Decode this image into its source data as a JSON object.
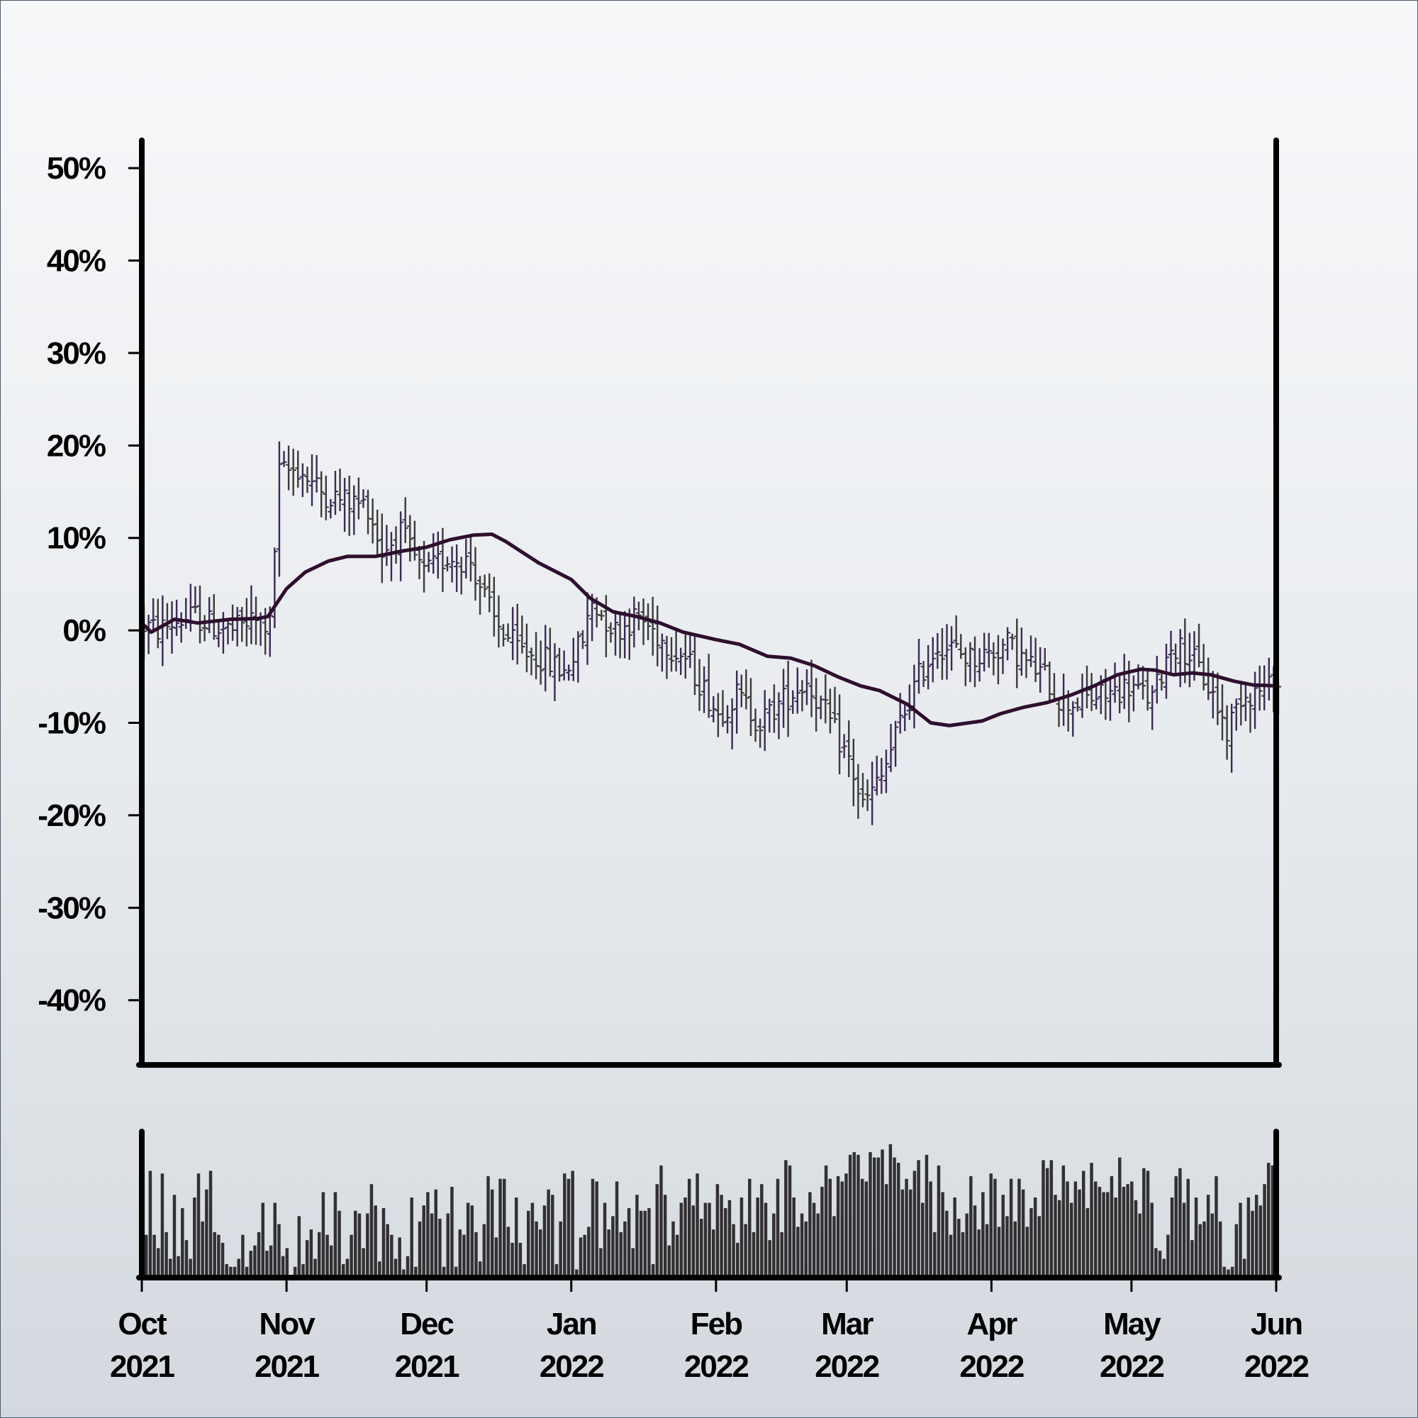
{
  "chart_data": {
    "type": "ohlc",
    "title": "",
    "xlabel": "",
    "ylabel": "",
    "y_unit": "%",
    "ylim": [
      -47,
      53
    ],
    "y_ticks": [
      50,
      40,
      30,
      20,
      10,
      0,
      -10,
      -20,
      -30,
      -40
    ],
    "y_tick_labels": [
      "50%",
      "40%",
      "30%",
      "20%",
      "10%",
      "0%",
      "-10%",
      "-20%",
      "-30%",
      "-40%"
    ],
    "x_range": [
      "2021-10-01",
      "2022-06-01"
    ],
    "x_ticks": [
      {
        "date": "2021-10-01",
        "month": "Oct",
        "year": "2021"
      },
      {
        "date": "2021-11-01",
        "month": "Nov",
        "year": "2021"
      },
      {
        "date": "2021-12-01",
        "month": "Dec",
        "year": "2021"
      },
      {
        "date": "2022-01-01",
        "month": "Jan",
        "year": "2022"
      },
      {
        "date": "2022-02-01",
        "month": "Feb",
        "year": "2022"
      },
      {
        "date": "2022-03-01",
        "month": "Mar",
        "year": "2022"
      },
      {
        "date": "2022-04-01",
        "month": "Apr",
        "year": "2022"
      },
      {
        "date": "2022-05-01",
        "month": "May",
        "year": "2022"
      },
      {
        "date": "2022-06-01",
        "month": "Jun",
        "year": "2022"
      }
    ],
    "price_anchors": [
      [
        "2021-10-01",
        0.5
      ],
      [
        "2021-10-04",
        0.0
      ],
      [
        "2021-10-08",
        1.0
      ],
      [
        "2021-10-12",
        1.5
      ],
      [
        "2021-10-16",
        0.5
      ],
      [
        "2021-10-20",
        0.0
      ],
      [
        "2021-10-24",
        1.0
      ],
      [
        "2021-10-28",
        0.5
      ],
      [
        "2021-10-30",
        17.0
      ],
      [
        "2021-11-03",
        17.5
      ],
      [
        "2021-11-08",
        15.0
      ],
      [
        "2021-11-13",
        14.0
      ],
      [
        "2021-11-18",
        13.5
      ],
      [
        "2021-11-21",
        8.5
      ],
      [
        "2021-11-25",
        10.5
      ],
      [
        "2021-11-30",
        6.0
      ],
      [
        "2021-12-05",
        8.0
      ],
      [
        "2021-12-10",
        7.5
      ],
      [
        "2021-12-15",
        1.0
      ],
      [
        "2021-12-20",
        -2.0
      ],
      [
        "2021-12-25",
        -3.0
      ],
      [
        "2021-12-30",
        -4.5
      ],
      [
        "2022-01-03",
        -1.0
      ],
      [
        "2022-01-05",
        3.0
      ],
      [
        "2022-01-10",
        0.0
      ],
      [
        "2022-01-15",
        1.5
      ],
      [
        "2022-01-20",
        -1.0
      ],
      [
        "2022-01-25",
        -3.0
      ],
      [
        "2022-02-01",
        -9.0
      ],
      [
        "2022-02-05",
        -7.0
      ],
      [
        "2022-02-10",
        -10.0
      ],
      [
        "2022-02-15",
        -7.5
      ],
      [
        "2022-02-20",
        -5.5
      ],
      [
        "2022-02-24",
        -9.0
      ],
      [
        "2022-03-01",
        -14.0
      ],
      [
        "2022-03-04",
        -19.0
      ],
      [
        "2022-03-08",
        -16.0
      ],
      [
        "2022-03-12",
        -10.0
      ],
      [
        "2022-03-16",
        -5.0
      ],
      [
        "2022-03-20",
        -1.5
      ],
      [
        "2022-03-23",
        -2.0
      ],
      [
        "2022-03-27",
        -3.0
      ],
      [
        "2022-03-31",
        -2.5
      ],
      [
        "2022-04-04",
        -1.5
      ],
      [
        "2022-04-08",
        -3.5
      ],
      [
        "2022-04-12",
        -5.0
      ],
      [
        "2022-04-16",
        -8.0
      ],
      [
        "2022-04-20",
        -7.5
      ],
      [
        "2022-04-25",
        -7.0
      ],
      [
        "2022-04-30",
        -6.0
      ],
      [
        "2022-05-05",
        -7.5
      ],
      [
        "2022-05-09",
        -1.5
      ],
      [
        "2022-05-13",
        -2.5
      ],
      [
        "2022-05-18",
        -7.0
      ],
      [
        "2022-05-21",
        -11.0
      ],
      [
        "2022-05-24",
        -7.0
      ],
      [
        "2022-05-28",
        -6.5
      ],
      [
        "2022-06-01",
        -6.0
      ]
    ],
    "moving_average": [
      [
        "2021-10-01",
        0.8
      ],
      [
        "2021-10-03",
        -0.2
      ],
      [
        "2021-10-08",
        1.2
      ],
      [
        "2021-10-13",
        0.8
      ],
      [
        "2021-10-20",
        1.2
      ],
      [
        "2021-10-26",
        1.3
      ],
      [
        "2021-10-28",
        1.5
      ],
      [
        "2021-11-01",
        4.5
      ],
      [
        "2021-11-05",
        6.3
      ],
      [
        "2021-11-10",
        7.5
      ],
      [
        "2021-11-14",
        8.0
      ],
      [
        "2021-11-20",
        8.0
      ],
      [
        "2021-11-26",
        8.6
      ],
      [
        "2021-12-01",
        9.0
      ],
      [
        "2021-12-06",
        9.8
      ],
      [
        "2021-12-11",
        10.3
      ],
      [
        "2021-12-15",
        10.4
      ],
      [
        "2021-12-18",
        9.6
      ],
      [
        "2021-12-25",
        7.3
      ],
      [
        "2022-01-01",
        5.5
      ],
      [
        "2022-01-05",
        3.5
      ],
      [
        "2022-01-10",
        2.0
      ],
      [
        "2022-01-15",
        1.5
      ],
      [
        "2022-01-20",
        0.8
      ],
      [
        "2022-01-25",
        -0.2
      ],
      [
        "2022-02-01",
        -1.0
      ],
      [
        "2022-02-06",
        -1.5
      ],
      [
        "2022-02-12",
        -2.8
      ],
      [
        "2022-02-17",
        -3.0
      ],
      [
        "2022-02-22",
        -3.8
      ],
      [
        "2022-02-27",
        -5.0
      ],
      [
        "2022-03-04",
        -6.0
      ],
      [
        "2022-03-08",
        -6.5
      ],
      [
        "2022-03-14",
        -8.0
      ],
      [
        "2022-03-19",
        -10.0
      ],
      [
        "2022-03-23",
        -10.3
      ],
      [
        "2022-03-30",
        -9.8
      ],
      [
        "2022-04-03",
        -9.0
      ],
      [
        "2022-04-08",
        -8.3
      ],
      [
        "2022-04-13",
        -7.8
      ],
      [
        "2022-04-18",
        -7.0
      ],
      [
        "2022-04-23",
        -6.0
      ],
      [
        "2022-04-28",
        -4.8
      ],
      [
        "2022-05-03",
        -4.2
      ],
      [
        "2022-05-06",
        -4.3
      ],
      [
        "2022-05-10",
        -4.8
      ],
      [
        "2022-05-14",
        -4.6
      ],
      [
        "2022-05-18",
        -4.8
      ],
      [
        "2022-05-23",
        -5.5
      ],
      [
        "2022-05-27",
        -5.9
      ],
      [
        "2022-06-01",
        -6.0
      ]
    ],
    "volume_relative": [
      0.3,
      0.78,
      0.3,
      0.2,
      0.76,
      0.32,
      0.12,
      0.6,
      0.14,
      0.5,
      0.26,
      0.12,
      0.58,
      0.76,
      0.4,
      0.64,
      0.78,
      0.32,
      0.3,
      0.24,
      0.08,
      0.06,
      0.06,
      0.12,
      0.3,
      0.06,
      0.18,
      0.22,
      0.32,
      0.54,
      0.18,
      0.22,
      0.54,
      0.38,
      0.14,
      0.2,
      0.0,
      0.06,
      0.44,
      0.08,
      0.26,
      0.34,
      0.12,
      0.32,
      0.62,
      0.3,
      0.22,
      0.62,
      0.48,
      0.08,
      0.12,
      0.3,
      0.48,
      0.46,
      0.2,
      0.46,
      0.68,
      0.52,
      0.1,
      0.5,
      0.38,
      0.3,
      0.12,
      0.28,
      0.04,
      0.14,
      0.58,
      0.06,
      0.4,
      0.52,
      0.62,
      0.46,
      0.64,
      0.42,
      0.06,
      0.46,
      0.66,
      0.06,
      0.34,
      0.3,
      0.54,
      0.52,
      0.32,
      0.1,
      0.38,
      0.74,
      0.64,
      0.28,
      0.72,
      0.72,
      0.36,
      0.24,
      0.58,
      0.24,
      0.08,
      0.48,
      0.54,
      0.4,
      0.34,
      0.52,
      0.64,
      0.6,
      0.08,
      0.4,
      0.76,
      0.72,
      0.78,
      0.04,
      0.28,
      0.3,
      0.36,
      0.72,
      0.7,
      0.2,
      0.54,
      0.34,
      0.44,
      0.7,
      0.32,
      0.4,
      0.5,
      0.2,
      0.6,
      0.48,
      0.48,
      0.5,
      0.08,
      0.68,
      0.82,
      0.6,
      0.22,
      0.4,
      0.3,
      0.54,
      0.58,
      0.72,
      0.52,
      0.76,
      0.42,
      0.54,
      0.54,
      0.34,
      0.68,
      0.6,
      0.5,
      0.56,
      0.38,
      0.24,
      0.58,
      0.38,
      0.72,
      0.32,
      0.58,
      0.68,
      0.54,
      0.26,
      0.46,
      0.72,
      0.32,
      0.86,
      0.82,
      0.58,
      0.36,
      0.46,
      0.4,
      0.62,
      0.54,
      0.46,
      0.66,
      0.82,
      0.72,
      0.44,
      0.74,
      0.7,
      0.76,
      0.9,
      0.92,
      0.9,
      0.72,
      0.7,
      0.92,
      0.88,
      0.88,
      0.94,
      0.68,
      0.98,
      0.88,
      0.84,
      0.64,
      0.72,
      0.64,
      0.78,
      0.86,
      0.54,
      0.9,
      0.7,
      0.32,
      0.82,
      0.62,
      0.48,
      0.3,
      0.58,
      0.42,
      0.32,
      0.46,
      0.74,
      0.52,
      0.34,
      0.62,
      0.38,
      0.76,
      0.72,
      0.36,
      0.6,
      0.44,
      0.72,
      0.4,
      0.72,
      0.64,
      0.36,
      0.5,
      0.58,
      0.44,
      0.86,
      0.8,
      0.86,
      0.6,
      0.56,
      0.82,
      0.7,
      0.54,
      0.7,
      0.64,
      0.78,
      0.5,
      0.84,
      0.7,
      0.66,
      0.62,
      0.62,
      0.74,
      0.58,
      0.88,
      0.66,
      0.68,
      0.7,
      0.56,
      0.46,
      0.8,
      0.78,
      0.54,
      0.2,
      0.18,
      0.12,
      0.3,
      0.58,
      0.74,
      0.8,
      0.54,
      0.72,
      0.26,
      0.58,
      0.38,
      0.4,
      0.6,
      0.46,
      0.74,
      0.4,
      0.06,
      0.04,
      0.06,
      0.38,
      0.54,
      0.12,
      0.58,
      0.48,
      0.6,
      0.52,
      0.68,
      0.84,
      0.82,
      0.8
    ]
  }
}
